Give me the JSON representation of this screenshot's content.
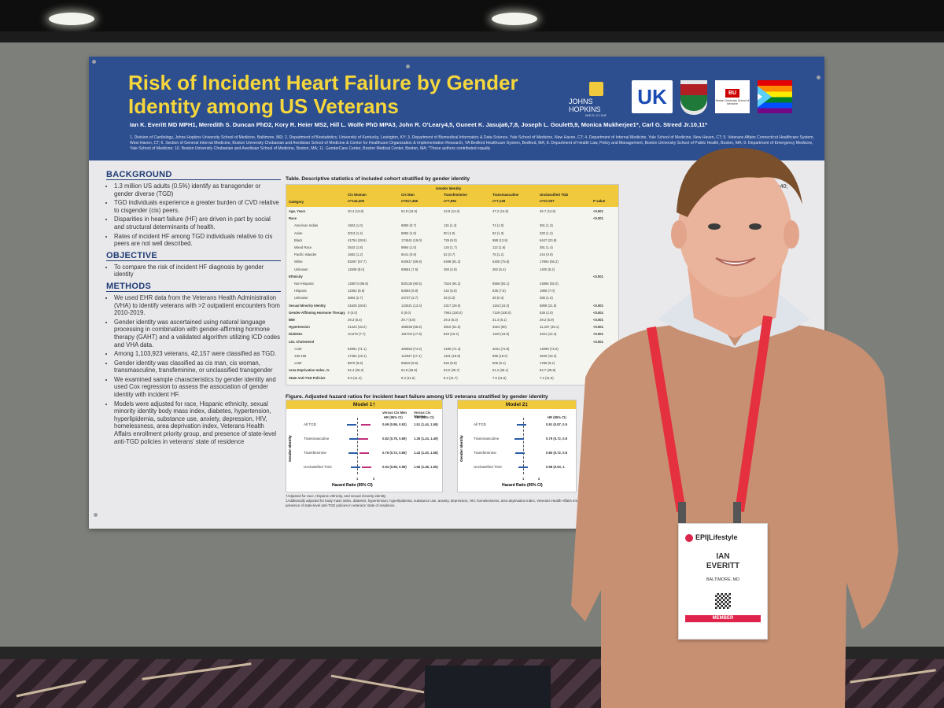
{
  "poster": {
    "title_line1": "Risk of Incident Heart Failure by Gender",
    "title_line2": "Identity among US Veterans",
    "authors": "Ian K. Everitt MD MPH1, Meredith S. Duncan PhD2, Kory R. Heier MS2, Hill L. Wolfe PhD MPA3, John R. O'Leary4,5, Guneet K. Jasuja6,7,8, Joseph L. Goulet5,9, Monica Mukherjee1*, Carl G. Streed Jr.10,11*",
    "affiliations": "1. Division of Cardiology, Johns Hopkins University School of Medicine, Baltimore, MD; 2. Department of Biostatistics, University of Kentucky, Lexington, KY; 3. Department of Biomedical Informatics & Data Science, Yale School of Medicine, New Haven, CT; 4. Department of Internal Medicine, Yale School of Medicine, New Haven, CT; 5. Veterans Affairs Connecticut Healthcare System, West Haven, CT; 6. Section of General Internal Medicine, Boston University Chobanian and Avedisian School of Medicine & Center for Healthcare Organization & Implementation Research, VA Bedford Healthcare System, Bedford, MA; 8. Department of Health Law, Policy and Management, Boston University School of Public Health, Boston, MA; 9. Department of Emergency Medicine, Yale School of Medicine; 10. Boston University Chobanian and Avedisian School of Medicine, Boston, MA; 11. GenderCare Center, Boston Medical Center, Boston, MA; *These authors contributed equally",
    "logos": {
      "jh_name": "JOHNS HOPKINS",
      "jh_sub": "MEDICINE",
      "uk": "UK",
      "bu_badge": "BU",
      "bu_text": "Boston University School of Medicine"
    },
    "background": {
      "heading": "BACKGROUND",
      "bullets": [
        "1.3 million US adults (0.5%) identify as transgender or gender diverse (TGD)",
        "TGD individuals experience a greater burden of CVD relative to cisgender (cis) peers.",
        "Disparities in heart failure (HF) are driven in part by social and structural determinants of health.",
        "Rates of incident HF among TGD individuals relative to cis peers are not well described."
      ]
    },
    "objective": {
      "heading": "OBJECTIVE",
      "bullets": [
        "To compare the risk of incident HF diagnosis by gender identity"
      ]
    },
    "methods": {
      "heading": "METHODS",
      "bullets": [
        "We used EHR data from the Veterans Health Administration (VHA) to identify veterans with >2 outpatient encounters from 2010-2019.",
        "Gender identity was ascertained using natural language processing in combination with gender-affirming hormone therapy (GAHT) and a validated algorithm utilizing ICD codes and VHA data.",
        "Among 1,103,923 veterans, 42,157 were classified as TGD.",
        "Gender identity was classified as cis man, cis woman, transmasculine, transfeminine, or unclassified transgender",
        "We examined sample characteristics by gender identity and used Cox regression to assess the association of gender identity with incident HF.",
        "Models were adjusted for race, Hispanic ethnicity, sexual minority identity body mass index, diabetes, hypertension, hyperlipidemia, substance use, anxiety, depression, HIV, homelessness, area deprivation index, Veterans Health Affairs enrollment priority group, and presence of state-level anti-TGD policies in veterans' state of residence"
      ]
    },
    "table": {
      "title": "Table. Descriptive statistics of included cohort stratified by gender identity",
      "group_header": "Gender Identity",
      "col_category": "Category",
      "col_pvalue": "P value",
      "columns": [
        {
          "name": "Cis Woman",
          "n": "n=144,300"
        },
        {
          "name": "Cis Man",
          "n": "n=917,466"
        },
        {
          "name": "Transfeminine",
          "n": "n=7,991"
        },
        {
          "name": "Transmasculine",
          "n": "n=7,129"
        },
        {
          "name": "Unclassified TGD",
          "n": "n=27,037"
        }
      ],
      "rows": [
        {
          "label": "Age, Years",
          "bold": true,
          "vals": [
            "40.4 (13.8)",
            "52.8 (16.9)",
            "43.8 (14.3)",
            "47.2 (14.8)",
            "46.7 (14.6)"
          ],
          "p": "<0.001"
        },
        {
          "label": "Race",
          "bold": true,
          "vals": [
            "",
            "",
            "",
            "",
            ""
          ],
          "p": "<0.001"
        },
        {
          "label": "American Indian",
          "bold": false,
          "vals": [
            "1504 (1.0)",
            "6850 (0.7)",
            "115 (1.4)",
            "74 (1.0)",
            "351 (1.3)"
          ],
          "p": ""
        },
        {
          "label": "Asian",
          "bold": false,
          "vals": [
            "2013 (1.4)",
            "8982 (1.0)",
            "80 (1.0)",
            "92 (1.3)",
            "320 (1.2)"
          ],
          "p": ""
        },
        {
          "label": "Black",
          "bold": false,
          "vals": [
            "41754 (28.9)",
            "174541 (19.0)",
            "729 (9.0)",
            "988 (13.9)",
            "6447 (23.8)"
          ],
          "p": ""
        },
        {
          "label": "Mixed Race",
          "bold": false,
          "vals": [
            "2542 (1.8)",
            "8984 (1.0)",
            "134 (1.7)",
            "112 (1.6)",
            "381 (1.4)"
          ],
          "p": ""
        },
        {
          "label": "Pacific Islander",
          "bold": false,
          "vals": [
            "1682 (1.2)",
            "8441 (0.9)",
            "52 (0.7)",
            "76 (1.1)",
            "244 (0.9)"
          ],
          "p": ""
        },
        {
          "label": "White",
          "bold": false,
          "vals": [
            "83297 (57.7)",
            "640617 (69.8)",
            "6498 (81.3)",
            "5405 (75.8)",
            "17894 (66.2)"
          ],
          "p": ""
        },
        {
          "label": "Unknown",
          "bold": false,
          "vals": [
            "11508 (8.0)",
            "69551 (7.6)",
            "393 (4.9)",
            "382 (5.4)",
            "1400 (5.2)"
          ],
          "p": ""
        },
        {
          "label": "Ethnicity",
          "bold": true,
          "vals": [
            "",
            "",
            "",
            "",
            ""
          ],
          "p": "<0.001"
        },
        {
          "label": "Non-Hispanic",
          "bold": false,
          "vals": [
            "128074 (88.8)",
            "830135 (90.5)",
            "7524 (94.2)",
            "6566 (92.1)",
            "24866 (92.0)"
          ],
          "p": ""
        },
        {
          "label": "Hispanic",
          "bold": false,
          "vals": [
            "12362 (8.6)",
            "62594 (6.8)",
            "442 (5.5)",
            "535 (7.5)",
            "1906 (7.0)"
          ],
          "p": ""
        },
        {
          "label": "Unknown",
          "bold": false,
          "vals": [
            "3864 (2.7)",
            "24737 (2.7)",
            "25 (0.3)",
            "28 (0.4)",
            "265 (1.0)"
          ],
          "p": ""
        },
        {
          "label": "Sexual Minority Identity",
          "bold": true,
          "vals": [
            "41625 (28.8)",
            "123021 (13.4)",
            "2317 (29.0)",
            "1163 (16.3)",
            "5808 (21.5)"
          ],
          "p": "<0.001"
        },
        {
          "label": "Gender-Affirming Hormone Therapy",
          "bold": true,
          "vals": [
            "0 (0.0)",
            "0 (0.0)",
            "7991 (100.0)",
            "7129 (100.0)",
            "538 (2.0)"
          ],
          "p": "<0.001"
        },
        {
          "label": "BMI",
          "bold": true,
          "vals": [
            "29.3 (6.4)",
            "29.7 (5.8)",
            "29.3 (6.3)",
            "31.4 (6.1)",
            "29.2 (5.9)"
          ],
          "p": "<0.001"
        },
        {
          "label": "Hypertension",
          "bold": true,
          "vals": [
            "41423 (33.2)",
            "458036 (55.6)",
            "3810 (51.0)",
            "3324 (50)",
            "11,337 (45.1)"
          ],
          "p": "<0.001"
        },
        {
          "label": "Diabetes",
          "bold": true,
          "vals": [
            "10,676 (7.7)",
            "161702 (17.8)",
            "823 (10.4)",
            "1193 (16.9)",
            "3341 (12.4)"
          ],
          "p": "<0.001"
        },
        {
          "label": "LDL Cholesterol",
          "bold": true,
          "vals": [
            "",
            "",
            "",
            "",
            ""
          ],
          "p": "<0.001"
        },
        {
          "label": "<130",
          "bold": false,
          "vals": [
            "64991 (71.1)",
            "490553 (74.4)",
            "4190 (71.4)",
            "4031 (72.9)",
            "14099 (72.6)"
          ],
          "p": ""
        },
        {
          "label": "130-159",
          "bold": false,
          "vals": [
            "17482 (19.1)",
            "112947 (17.1)",
            "1161 (19.8)",
            "995 (18.0)",
            "3540 (18.2)"
          ],
          "p": ""
        },
        {
          "label": "≥160",
          "bold": false,
          "vals": [
            "8970 (9.8)",
            "55815 (8.5)",
            "520 (8.9)",
            "505 (9.1)",
            "1789 (9.2)"
          ],
          "p": ""
        },
        {
          "label": "Area Deprivation Index, %",
          "bold": true,
          "vals": [
            "54.4 (25.3)",
            "54.9 (26.6)",
            "53.0 (25.7)",
            "51.2 (26.1)",
            "54.7 (26.9)"
          ],
          "p": ""
        },
        {
          "label": "State Anti-TGD Policies",
          "bold": true,
          "vals": [
            "6.0 (11.4)",
            "6.3 (11.5)",
            "8.2 (11.7)",
            "7.6 (11.8)",
            "7.2 (11.6)"
          ],
          "p": ""
        }
      ]
    },
    "figure": {
      "title": "Figure. Adjusted hazard ratios for incident heart failure among US veterans stratified by gender identity",
      "yaxis": "Gender Identity",
      "xaxis": "Hazard Ratio (95% CI)",
      "tick_1": "1",
      "tick_2": "2",
      "model1": {
        "name": "Model 1†",
        "col1": "Versus Cis Men",
        "col2": "Versus Cis Women",
        "col_sub": "HR (95% CI)",
        "rows": [
          {
            "label": "All TGD",
            "hr_men": "0.69 (0.86, 0.92)",
            "hr_women": "1.51 (1.44, 1.58)"
          },
          {
            "label": "Transmasculine",
            "hr_men": "0.82 (0.75, 0.89)",
            "hr_women": "1.36 (1.24, 1.49)"
          },
          {
            "label": "Transfeminine",
            "hr_men": "0.79 (0.72, 0.86)",
            "hr_women": "1.43 (1.30, 1.58)"
          },
          {
            "label": "Unclassified TGD",
            "hr_men": "0.93 (0.85, 0.98)",
            "hr_women": "1.56 (1.48, 1.65)"
          }
        ]
      },
      "model2": {
        "name": "Model 2‡",
        "col_sub": "HR (95% CI)",
        "rows": [
          {
            "label": "All TGD",
            "hr": "0.91 (0.87, 0.9"
          },
          {
            "label": "Transmasculine",
            "hr": "0.79 (0.72, 0.8"
          },
          {
            "label": "Transfeminine",
            "hr": "0.80 (0.72, 0.8"
          },
          {
            "label": "Unclassified TGD",
            "hr": "0.98 (0.93, 1."
          }
        ]
      },
      "footnote1": "†Adjusted for race, Hispanic ethnicity, and sexual minority identity",
      "footnote2": "‡Additionally adjusted for body mass index, diabetes, hypertension, hyperlipidemia, substance use, anxiety, depression, HIV, homelessness, area deprivation index, Veterans Health Affairs enrollment priority group, and presence of state-level anti-TGD policies in veterans' state of residence."
    },
    "results_fragments": [
      "ears (cis females=40;",
      "nts (3,078 among",
      "TGD veterans was",
      "00 person-years",
      "3] and 3.87 [3.76-3.98]",
      "eterans, respectively",
      "ethnicity, and sexual",
      "d 1.51 [1.44-1.58]",
      "HF compared to",
      "07-1.33])"
    ]
  },
  "badge": {
    "brand": "EPI|Lifestyle",
    "first_name": "IAN",
    "last_name": "EVERITT",
    "city": "BALTIMORE, MD",
    "role": "MEMBER"
  },
  "colors": {
    "poster_header": "#2d4e8f",
    "title_yellow": "#f5d63c",
    "table_header": "#f0c93c",
    "lanyard": "#e53040",
    "sweater": "#c79072"
  }
}
